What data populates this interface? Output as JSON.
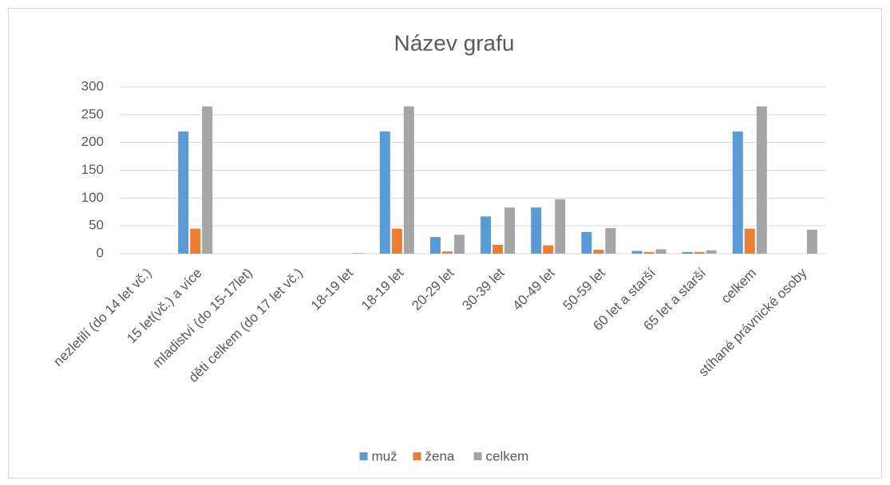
{
  "chart_data": {
    "type": "bar",
    "title": "Název grafu",
    "categories": [
      "nezletilí (do 14 let vč.)",
      "15 let(vč.) a více",
      "mladiství (do 15-17let)",
      "děti celkem (do 17 let vč.)",
      "18-19 let",
      "18-19 let",
      "20-29 let",
      "30-39 let",
      "40-49 let",
      "50-59 let",
      "60 let a starší",
      "65 let a starší",
      "celkem",
      "stíhané právnické osoby"
    ],
    "series": [
      {
        "name": "muž",
        "color": "#5b9bd5",
        "values": [
          0,
          220,
          0,
          0,
          0,
          220,
          30,
          67,
          83,
          39,
          5,
          3,
          220,
          0
        ]
      },
      {
        "name": "žena",
        "color": "#ed7d31",
        "values": [
          0,
          45,
          0,
          0,
          0,
          45,
          4,
          16,
          15,
          7,
          3,
          3,
          45,
          0
        ]
      },
      {
        "name": "celkem",
        "color": "#a5a5a5",
        "values": [
          0,
          265,
          0,
          0,
          1,
          265,
          34,
          83,
          98,
          46,
          8,
          6,
          265,
          43
        ]
      }
    ],
    "ylim": [
      0,
      300
    ],
    "yticks": [
      0,
      50,
      100,
      150,
      200,
      250,
      300
    ],
    "grid": true,
    "legend": "bottom"
  }
}
